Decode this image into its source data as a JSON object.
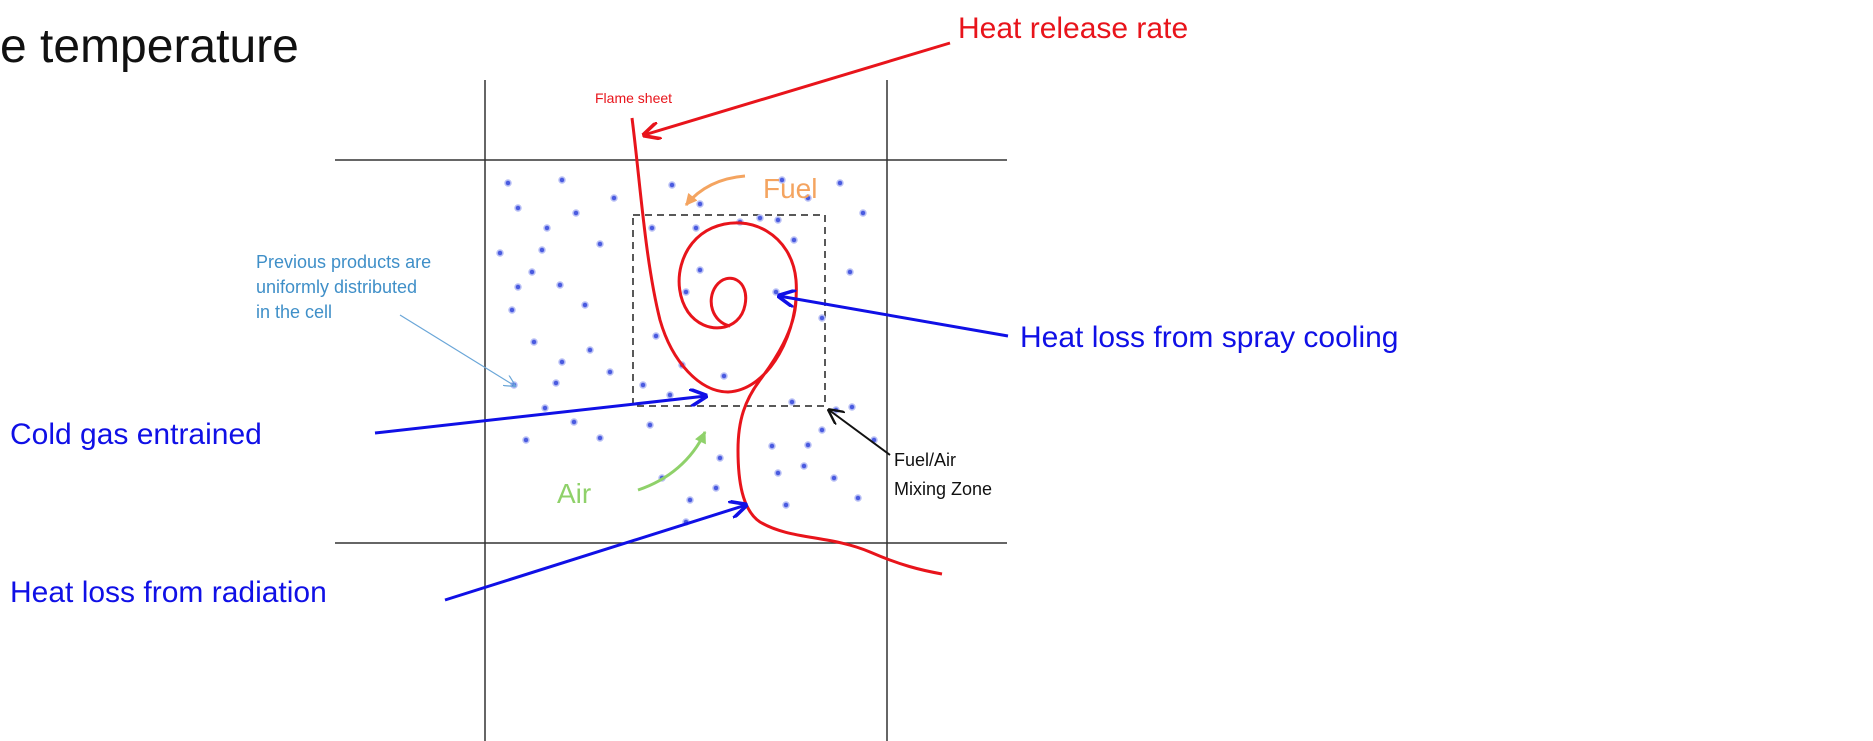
{
  "title": "e temperature",
  "labels": {
    "heat_release": "Heat release rate",
    "flame_sheet": "Flame sheet",
    "fuel": "Fuel",
    "previous_products": [
      "Previous products are",
      "uniformly distributed",
      "in the cell"
    ],
    "spray_cooling": "Heat loss from spray cooling",
    "cold_gas": "Cold gas entrained",
    "air": "Air",
    "mixing_zone": [
      "Fuel/Air",
      "Mixing Zone"
    ],
    "radiation": "Heat loss from radiation"
  }
}
